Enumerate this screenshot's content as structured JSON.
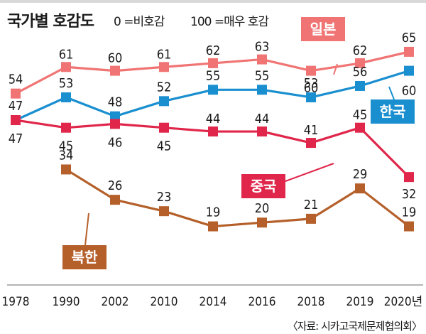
{
  "header": {
    "title": "국가별 호감도",
    "scale_low": "0 =비호감",
    "scale_high": "100 =매우 호감"
  },
  "source": "〈자료: 시카고국제문제협의회〉",
  "chart_data": {
    "type": "line",
    "title": "국가별 호감도",
    "x": [
      "1978",
      "1990",
      "2002",
      "2010",
      "2014",
      "2016",
      "2018",
      "2019",
      "2020년"
    ],
    "ylim": [
      0,
      100
    ],
    "grid": false,
    "series": [
      {
        "name": "일본",
        "color": "#f07473",
        "values": [
          54,
          61,
          60,
          61,
          62,
          63,
          60,
          62,
          65
        ]
      },
      {
        "name": "한국",
        "color": "#1a8fd0",
        "values": [
          47,
          53,
          48,
          52,
          55,
          55,
          53,
          56,
          60
        ]
      },
      {
        "name": "중국",
        "color": "#e0264a",
        "values": [
          47,
          45,
          46,
          45,
          44,
          44,
          41,
          45,
          32
        ]
      },
      {
        "name": "북한",
        "color": "#b5602a",
        "values": [
          null,
          34,
          26,
          23,
          19,
          20,
          21,
          29,
          19
        ]
      }
    ]
  }
}
